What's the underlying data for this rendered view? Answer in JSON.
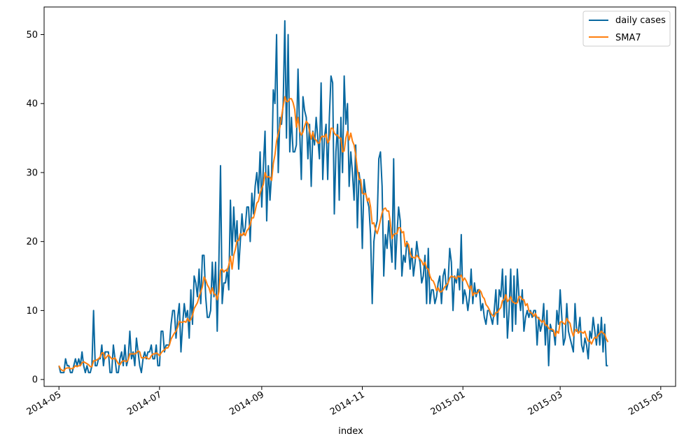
{
  "chart_data": {
    "type": "line",
    "title": "",
    "xlabel": "index",
    "ylabel": "",
    "grid": false,
    "legend_placement": "top-right",
    "x_start": "2014-05-01",
    "x_end": "2015-05-01",
    "xlim": [
      "2014-04-22",
      "2015-05-10"
    ],
    "ylim": [
      -1,
      54
    ],
    "x_ticks": [
      "2014-05",
      "2014-07",
      "2014-09",
      "2014-11",
      "2015-01",
      "2015-03",
      "2015-05"
    ],
    "y_ticks": [
      0,
      10,
      20,
      30,
      40,
      50
    ],
    "series": [
      {
        "name": "daily cases",
        "color": "#0868a0",
        "values": [
          2,
          1,
          1,
          1,
          3,
          2,
          2,
          1,
          1,
          2,
          3,
          2,
          3,
          2,
          4,
          2,
          1,
          2,
          1,
          1,
          2,
          10,
          2,
          2,
          3,
          3,
          5,
          2,
          4,
          4,
          4,
          1,
          1,
          5,
          3,
          1,
          1,
          3,
          4,
          2,
          5,
          2,
          3,
          7,
          3,
          4,
          2,
          6,
          4,
          2,
          1,
          3,
          4,
          3,
          4,
          4,
          5,
          3,
          3,
          5,
          2,
          2,
          7,
          7,
          4,
          5,
          5,
          5,
          8,
          10,
          10,
          6,
          9,
          11,
          4,
          8,
          11,
          9,
          10,
          6,
          13,
          8,
          15,
          14,
          12,
          16,
          11,
          18,
          18,
          12,
          9,
          9,
          10,
          17,
          12,
          17,
          7,
          17,
          31,
          11,
          14,
          14,
          16,
          13,
          26,
          18,
          25,
          20,
          23,
          16,
          20,
          24,
          21,
          22,
          25,
          25,
          20,
          27,
          24,
          28,
          30,
          27,
          33,
          25,
          31,
          36,
          23,
          31,
          26,
          30,
          42,
          40,
          50,
          30,
          38,
          37,
          40,
          52,
          35,
          50,
          33,
          38,
          33,
          33,
          34,
          45,
          36,
          29,
          41,
          39,
          38,
          32,
          37,
          28,
          36,
          34,
          38,
          35,
          32,
          43,
          29,
          35,
          37,
          29,
          38,
          44,
          43,
          24,
          33,
          37,
          26,
          38,
          30,
          44,
          37,
          40,
          28,
          33,
          30,
          26,
          34,
          22,
          30,
          28,
          19,
          29,
          27,
          26,
          25,
          21,
          11,
          20,
          22,
          23,
          32,
          33,
          28,
          15,
          21,
          19,
          23,
          20,
          17,
          32,
          16,
          21,
          25,
          23,
          15,
          18,
          17,
          20,
          19,
          16,
          19,
          15,
          17,
          20,
          18,
          17,
          14,
          15,
          18,
          11,
          19,
          11,
          13,
          13,
          11,
          12,
          14,
          15,
          11,
          15,
          16,
          13,
          14,
          19,
          17,
          10,
          15,
          14,
          16,
          13,
          21,
          11,
          13,
          12,
          10,
          12,
          16,
          11,
          14,
          12,
          13,
          13,
          10,
          11,
          9,
          8,
          10,
          10,
          9,
          8,
          10,
          13,
          8,
          13,
          12,
          16,
          9,
          15,
          6,
          10,
          16,
          7,
          15,
          8,
          16,
          12,
          10,
          13,
          7,
          9,
          10,
          9,
          10,
          9,
          10,
          10,
          5,
          9,
          7,
          8,
          11,
          5,
          10,
          2,
          8,
          7,
          7,
          5,
          10,
          8,
          13,
          9,
          5,
          6,
          11,
          7,
          6,
          5,
          4,
          11,
          7,
          7,
          9,
          5,
          4,
          6,
          5,
          3,
          7,
          6,
          9,
          7,
          5,
          8,
          5,
          9,
          4,
          8,
          2,
          2
        ]
      },
      {
        "name": "SMA7",
        "color": "#ff7f0e",
        "values": []
      }
    ]
  }
}
